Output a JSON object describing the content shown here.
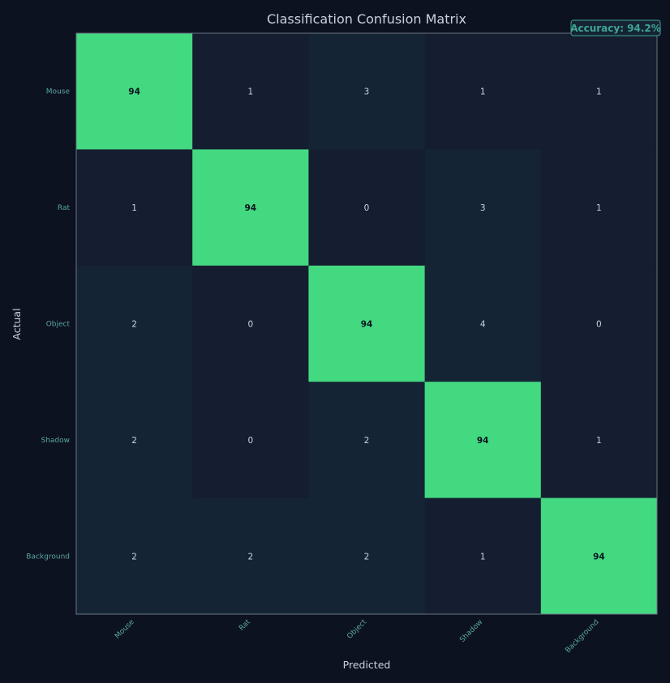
{
  "chart_data": {
    "type": "heatmap",
    "title": "Classification Confusion Matrix",
    "xlabel": "Predicted",
    "ylabel": "Actual",
    "x_categories": [
      "Mouse",
      "Rat",
      "Object",
      "Shadow",
      "Background"
    ],
    "y_categories": [
      "Mouse",
      "Rat",
      "Object",
      "Shadow",
      "Background"
    ],
    "values": [
      [
        94,
        1,
        3,
        1,
        1
      ],
      [
        1,
        94,
        0,
        3,
        1
      ],
      [
        2,
        0,
        94,
        4,
        0
      ],
      [
        2,
        0,
        2,
        94,
        1
      ],
      [
        2,
        2,
        2,
        1,
        94
      ]
    ],
    "annotation": "Accuracy: 94.2%",
    "grid": false,
    "colors": {
      "background": "#0c1220",
      "high": "#43d980",
      "low_dark": "#151d30",
      "low_light": "#152435",
      "text_light": "#c9d3df",
      "text_dark": "#0c1220",
      "tick": "#5aa6a0",
      "accent": "#3fa592"
    }
  }
}
